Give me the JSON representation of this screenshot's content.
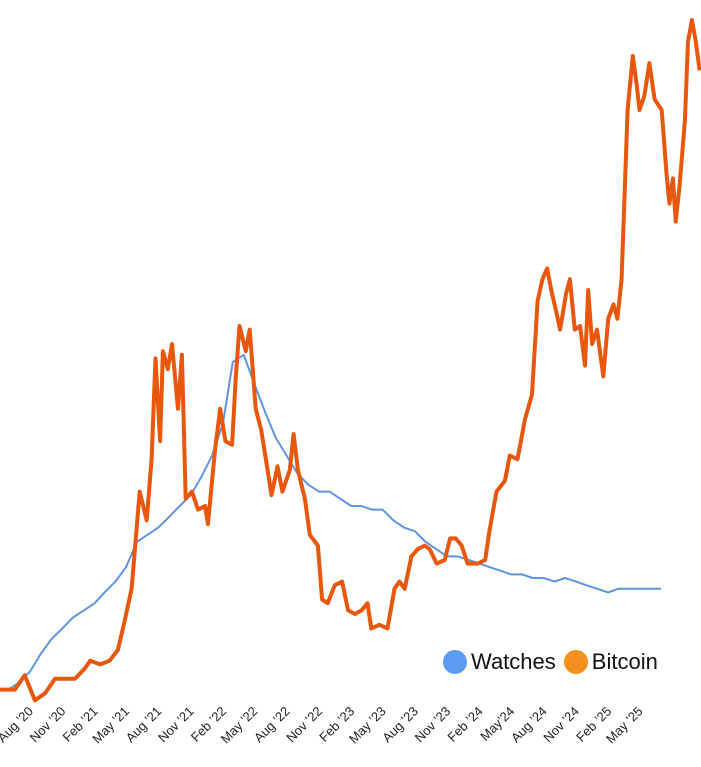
{
  "chart_data": {
    "type": "line",
    "title": "",
    "xlabel": "",
    "ylabel": "",
    "y_axis_shown": false,
    "grid": false,
    "legend_position": "bottom-right",
    "x_tick_labels": [
      "Aug ’20",
      "Nov ’20",
      "Feb ’21",
      "May ’21",
      "Aug ’21",
      "Nov ’21",
      "Feb ’22",
      "May ’22",
      "Aug ’22",
      "Nov ’22",
      "Feb ’23",
      "May ’23",
      "Aug ’23",
      "Nov ’23",
      "Feb ’24",
      "May’24",
      "Aug ’24",
      "Nov ’24",
      "Feb ’25",
      "May ’25"
    ],
    "x_tick_dates": [
      "2020-08-01",
      "2020-11-01",
      "2021-02-01",
      "2021-05-01",
      "2021-08-01",
      "2021-11-01",
      "2022-02-01",
      "2022-05-01",
      "2022-08-01",
      "2022-11-01",
      "2023-02-01",
      "2023-05-01",
      "2023-08-01",
      "2023-11-01",
      "2024-02-01",
      "2024-05-01",
      "2024-08-01",
      "2024-11-01",
      "2025-02-01",
      "2025-05-01"
    ],
    "series": [
      {
        "name": "Watches",
        "color": "#5f95e0",
        "points": [
          [
            "2020-05-01",
            14
          ],
          [
            "2020-06-01",
            14
          ],
          [
            "2020-07-01",
            16
          ],
          [
            "2020-08-01",
            19
          ],
          [
            "2020-09-01",
            24
          ],
          [
            "2020-10-01",
            28
          ],
          [
            "2020-11-01",
            31
          ],
          [
            "2020-12-01",
            34
          ],
          [
            "2021-01-01",
            36
          ],
          [
            "2021-02-01",
            38
          ],
          [
            "2021-03-01",
            41
          ],
          [
            "2021-04-01",
            44
          ],
          [
            "2021-05-01",
            48
          ],
          [
            "2021-06-01",
            55
          ],
          [
            "2021-07-01",
            57
          ],
          [
            "2021-08-01",
            59
          ],
          [
            "2021-09-01",
            62
          ],
          [
            "2021-10-01",
            65
          ],
          [
            "2021-11-01",
            68
          ],
          [
            "2021-12-01",
            73
          ],
          [
            "2022-01-01",
            79
          ],
          [
            "2022-02-01",
            88
          ],
          [
            "2022-03-01",
            105
          ],
          [
            "2022-04-01",
            107
          ],
          [
            "2022-05-01",
            99
          ],
          [
            "2022-06-01",
            91
          ],
          [
            "2022-07-01",
            84
          ],
          [
            "2022-08-01",
            79
          ],
          [
            "2022-09-01",
            74
          ],
          [
            "2022-10-01",
            71
          ],
          [
            "2022-11-01",
            69
          ],
          [
            "2022-12-01",
            69
          ],
          [
            "2023-01-01",
            67
          ],
          [
            "2023-02-01",
            65
          ],
          [
            "2023-03-01",
            65
          ],
          [
            "2023-04-01",
            64
          ],
          [
            "2023-05-01",
            64
          ],
          [
            "2023-06-01",
            61
          ],
          [
            "2023-07-01",
            59
          ],
          [
            "2023-08-01",
            58
          ],
          [
            "2023-09-01",
            55
          ],
          [
            "2023-10-01",
            53
          ],
          [
            "2023-11-01",
            51
          ],
          [
            "2023-12-01",
            51
          ],
          [
            "2024-01-01",
            50
          ],
          [
            "2024-02-01",
            49
          ],
          [
            "2024-03-01",
            48
          ],
          [
            "2024-04-01",
            47
          ],
          [
            "2024-05-01",
            46
          ],
          [
            "2024-06-01",
            46
          ],
          [
            "2024-07-01",
            45
          ],
          [
            "2024-08-01",
            45
          ],
          [
            "2024-09-01",
            44
          ],
          [
            "2024-10-01",
            45
          ],
          [
            "2024-11-01",
            44
          ],
          [
            "2024-12-01",
            43
          ],
          [
            "2025-01-01",
            42
          ],
          [
            "2025-02-01",
            41
          ],
          [
            "2025-03-01",
            42
          ],
          [
            "2025-04-01",
            42
          ],
          [
            "2025-05-01",
            42
          ],
          [
            "2025-06-01",
            42
          ],
          [
            "2025-07-01",
            42
          ]
        ]
      },
      {
        "name": "Bitcoin",
        "color": "#e8570c",
        "legend_color": "#f5901e",
        "points": [
          [
            "2020-05-07",
            14
          ],
          [
            "2020-06-19",
            14
          ],
          [
            "2020-07-17",
            18
          ],
          [
            "2020-08-15",
            11
          ],
          [
            "2020-09-13",
            13
          ],
          [
            "2020-10-11",
            17
          ],
          [
            "2020-11-09",
            17
          ],
          [
            "2020-12-07",
            17
          ],
          [
            "2021-01-05",
            20
          ],
          [
            "2021-01-19",
            22
          ],
          [
            "2021-02-17",
            21
          ],
          [
            "2021-03-15",
            22
          ],
          [
            "2021-04-08",
            25
          ],
          [
            "2021-04-27",
            33
          ],
          [
            "2021-05-17",
            42
          ],
          [
            "2021-06-09",
            69
          ],
          [
            "2021-06-29",
            61
          ],
          [
            "2021-07-13",
            78
          ],
          [
            "2021-07-24",
            106
          ],
          [
            "2021-08-06",
            83
          ],
          [
            "2021-08-14",
            108
          ],
          [
            "2021-08-28",
            103
          ],
          [
            "2021-09-09",
            110
          ],
          [
            "2021-09-26",
            92
          ],
          [
            "2021-10-07",
            107
          ],
          [
            "2021-10-18",
            67
          ],
          [
            "2021-11-05",
            69
          ],
          [
            "2021-11-22",
            64
          ],
          [
            "2021-12-12",
            65
          ],
          [
            "2021-12-20",
            60
          ],
          [
            "2022-01-10",
            81
          ],
          [
            "2022-01-24",
            92
          ],
          [
            "2022-02-08",
            83
          ],
          [
            "2022-02-27",
            82
          ],
          [
            "2022-03-09",
            100
          ],
          [
            "2022-03-20",
            115
          ],
          [
            "2022-04-07",
            108
          ],
          [
            "2022-04-18",
            114
          ],
          [
            "2022-05-05",
            92
          ],
          [
            "2022-05-21",
            86
          ],
          [
            "2022-06-08",
            75
          ],
          [
            "2022-06-19",
            68
          ],
          [
            "2022-07-06",
            76
          ],
          [
            "2022-07-20",
            69
          ],
          [
            "2022-08-10",
            75
          ],
          [
            "2022-08-21",
            85
          ],
          [
            "2022-09-02",
            75
          ],
          [
            "2022-09-22",
            67
          ],
          [
            "2022-10-06",
            57
          ],
          [
            "2022-10-29",
            54
          ],
          [
            "2022-11-10",
            39
          ],
          [
            "2022-11-26",
            38
          ],
          [
            "2022-12-16",
            43
          ],
          [
            "2023-01-06",
            44
          ],
          [
            "2023-01-23",
            36
          ],
          [
            "2023-02-12",
            35
          ],
          [
            "2023-03-02",
            36
          ],
          [
            "2023-03-19",
            38
          ],
          [
            "2023-03-30",
            31
          ],
          [
            "2023-04-22",
            32
          ],
          [
            "2023-05-15",
            31
          ],
          [
            "2023-06-04",
            42
          ],
          [
            "2023-06-18",
            44
          ],
          [
            "2023-07-03",
            42
          ],
          [
            "2023-07-22",
            51
          ],
          [
            "2023-08-09",
            53
          ],
          [
            "2023-08-29",
            54
          ],
          [
            "2023-09-12",
            53
          ],
          [
            "2023-10-02",
            49
          ],
          [
            "2023-10-25",
            50
          ],
          [
            "2023-11-09",
            56
          ],
          [
            "2023-11-25",
            56
          ],
          [
            "2023-12-12",
            54
          ],
          [
            "2023-12-29",
            49
          ],
          [
            "2024-01-27",
            49
          ],
          [
            "2024-02-17",
            50
          ],
          [
            "2024-02-29",
            58
          ],
          [
            "2024-03-20",
            69
          ],
          [
            "2024-04-13",
            72
          ],
          [
            "2024-04-27",
            79
          ],
          [
            "2024-05-19",
            78
          ],
          [
            "2024-06-09",
            89
          ],
          [
            "2024-06-29",
            96
          ],
          [
            "2024-07-15",
            122
          ],
          [
            "2024-07-29",
            128
          ],
          [
            "2024-08-11",
            131
          ],
          [
            "2024-08-25",
            124
          ],
          [
            "2024-09-06",
            119
          ],
          [
            "2024-09-17",
            114
          ],
          [
            "2024-10-04",
            124
          ],
          [
            "2024-10-15",
            128
          ],
          [
            "2024-10-29",
            114
          ],
          [
            "2024-11-13",
            115
          ],
          [
            "2024-11-27",
            104
          ],
          [
            "2024-12-06",
            125
          ],
          [
            "2024-12-17",
            110
          ],
          [
            "2024-12-31",
            114
          ],
          [
            "2025-01-18",
            101
          ],
          [
            "2025-02-01",
            117
          ],
          [
            "2025-02-16",
            121
          ],
          [
            "2025-02-27",
            117
          ],
          [
            "2025-03-11",
            128
          ],
          [
            "2025-03-28",
            175
          ],
          [
            "2025-04-12",
            190
          ],
          [
            "2025-04-23",
            182
          ],
          [
            "2025-05-01",
            175
          ],
          [
            "2025-05-15",
            179
          ],
          [
            "2025-05-29",
            188
          ],
          [
            "2025-06-13",
            178
          ],
          [
            "2025-07-03",
            175
          ],
          [
            "2025-07-17",
            157
          ],
          [
            "2025-07-25",
            149
          ],
          [
            "2025-08-04",
            156
          ],
          [
            "2025-08-12",
            144
          ],
          [
            "2025-08-23",
            154
          ],
          [
            "2025-09-07",
            172
          ],
          [
            "2025-09-16",
            194
          ],
          [
            "2025-09-27",
            200
          ],
          [
            "2025-10-08",
            194
          ],
          [
            "2025-10-19",
            186
          ]
        ]
      }
    ]
  }
}
